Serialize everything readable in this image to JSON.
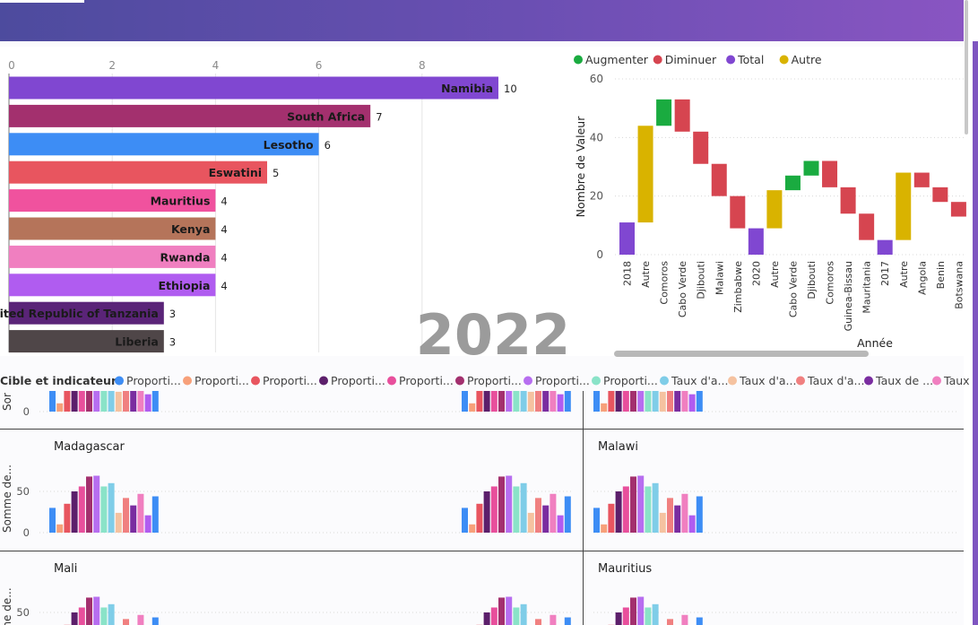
{
  "header": {
    "accent_from": "#4d4b9e",
    "accent_to": "#8955c2"
  },
  "bar_chart_year": "2022",
  "waterfall": {
    "legend": [
      {
        "label": "Augmenter",
        "color": "#1aab40"
      },
      {
        "label": "Diminuer",
        "color": "#d64550"
      },
      {
        "label": "Total",
        "color": "#8047d1"
      },
      {
        "label": "Autre",
        "color": "#d9b300"
      }
    ]
  },
  "small_multiples": {
    "legend_title": "Cible et indicateurs",
    "legend": [
      {
        "label": "Proporti...",
        "color": "#3d8df5"
      },
      {
        "label": "Proporti...",
        "color": "#f7a07a"
      },
      {
        "label": "Proporti...",
        "color": "#e8555f"
      },
      {
        "label": "Proporti...",
        "color": "#5c1f6b"
      },
      {
        "label": "Proporti...",
        "color": "#e84f9c"
      },
      {
        "label": "Proporti...",
        "color": "#a3306e"
      },
      {
        "label": "Proporti...",
        "color": "#b76ef0"
      },
      {
        "label": "Proporti...",
        "color": "#8ae3c8"
      },
      {
        "label": "Taux d'a...",
        "color": "#7fcde8"
      },
      {
        "label": "Taux d'a...",
        "color": "#f5c2a0"
      },
      {
        "label": "Taux d'a...",
        "color": "#f08080"
      },
      {
        "label": "Taux de ...",
        "color": "#7a2da0"
      },
      {
        "label": "Taux",
        "color": "#f07fc0"
      }
    ],
    "panels": [
      {
        "title": "Madagascar"
      },
      {
        "title": "Malawi"
      },
      {
        "title": "Mali"
      },
      {
        "title": "Mauritius"
      }
    ],
    "ylabel_top": "Sor",
    "ylabel_mid": "Somme de...",
    "ylabel_bottom": "me de...",
    "tick_0": "0",
    "tick_50": "50"
  },
  "chart_data": [
    {
      "type": "bar",
      "orientation": "horizontal",
      "categories": [
        "Namibia",
        "South Africa",
        "Lesotho",
        "Eswatini",
        "Mauritius",
        "Kenya",
        "Rwanda",
        "Ethiopia",
        "United Republic of Tanzania",
        "Liberia"
      ],
      "values": [
        10,
        7,
        6,
        5,
        4,
        4,
        4,
        4,
        3,
        3
      ],
      "colors": [
        "#8047d1",
        "#a3306e",
        "#3d8df5",
        "#e8555f",
        "#f0529e",
        "#b5745a",
        "#f07fc0",
        "#b05cf0",
        "#5a2478",
        "#4f4648"
      ],
      "xticks": [
        0,
        2,
        4,
        6,
        8
      ],
      "xlim": [
        0,
        10
      ],
      "grid": true
    },
    {
      "type": "waterfall",
      "categories": [
        "2018",
        "Autre",
        "Comoros",
        "Cabo Verde",
        "Djibouti",
        "Malawi",
        "Zimbabwe",
        "2020",
        "Autre",
        "Cabo Verde",
        "Djibouti",
        "Comoros",
        "Guinea-Bissau",
        "Mauritania",
        "2017",
        "Autre",
        "Angola",
        "Benin",
        "Botswana"
      ],
      "kinds": [
        "total",
        "autre",
        "up",
        "down",
        "down",
        "down",
        "down",
        "total",
        "autre",
        "up",
        "up",
        "down",
        "down",
        "down",
        "total",
        "autre",
        "down",
        "down",
        "down"
      ],
      "ranges": [
        [
          0,
          11
        ],
        [
          11,
          44
        ],
        [
          44,
          53
        ],
        [
          53,
          42
        ],
        [
          42,
          31
        ],
        [
          31,
          20
        ],
        [
          20,
          9
        ],
        [
          0,
          9
        ],
        [
          9,
          22
        ],
        [
          22,
          27
        ],
        [
          27,
          32
        ],
        [
          32,
          23
        ],
        [
          23,
          14
        ],
        [
          14,
          5
        ],
        [
          0,
          5
        ],
        [
          5,
          28
        ],
        [
          28,
          23
        ],
        [
          23,
          18
        ],
        [
          18,
          13
        ]
      ],
      "xlabel": "Année",
      "ylabel": "Nombre de Valeur",
      "yticks": [
        0,
        20,
        40,
        60
      ],
      "ylim": [
        0,
        60
      ]
    },
    {
      "type": "bar",
      "layout": "small-multiples",
      "series_colors": [
        "#3d8df5",
        "#f7a07a",
        "#e8555f",
        "#5c1f6b",
        "#e84f9c",
        "#a3306e",
        "#b76ef0",
        "#8ae3c8",
        "#7fcde8",
        "#f5c2a0",
        "#f08080",
        "#7a2da0",
        "#f07fc0",
        "#b05cf0"
      ],
      "values": [
        30,
        10,
        35,
        50,
        56,
        68,
        69,
        56,
        60,
        24,
        42,
        33,
        47,
        21,
        44
      ],
      "yticks": [
        0,
        50
      ]
    }
  ]
}
